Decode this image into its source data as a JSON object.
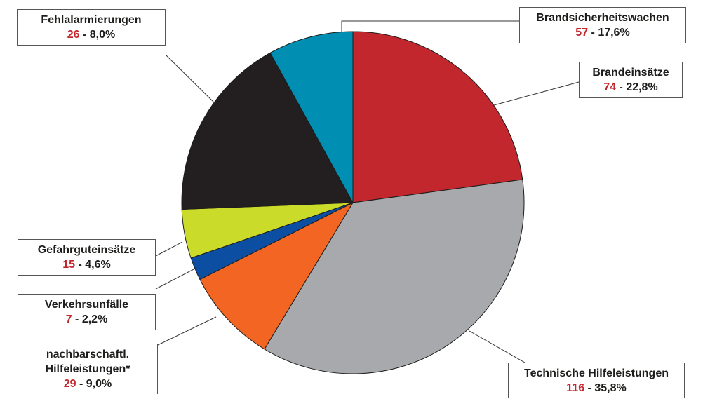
{
  "chart_data": {
    "type": "pie",
    "title": "",
    "slices": [
      {
        "label": "Brandeinsätze",
        "value": 74,
        "percent": "22,8%",
        "color": "#c1272d"
      },
      {
        "label": "Technische Hilfeleistungen",
        "value": 116,
        "percent": "35,8%",
        "color": "#a7a9ac"
      },
      {
        "label": "nachbarschaftl. Hilfeleistungen*",
        "value": 29,
        "percent": "9,0%",
        "color": "#f26522"
      },
      {
        "label": "Verkehrsunfälle",
        "value": 7,
        "percent": "2,2%",
        "color": "#0b4ea2"
      },
      {
        "label": "Gefahrguteinsätze",
        "value": 15,
        "percent": "4,6%",
        "color": "#cbdb2a"
      },
      {
        "label": "Brandsicherheitswachen",
        "value": 57,
        "percent": "17,6%",
        "color": "#231f20"
      },
      {
        "label": "Fehlalarmierungen",
        "value": 26,
        "percent": "8,0%",
        "color": "#008fb3"
      }
    ],
    "separator": " - "
  }
}
